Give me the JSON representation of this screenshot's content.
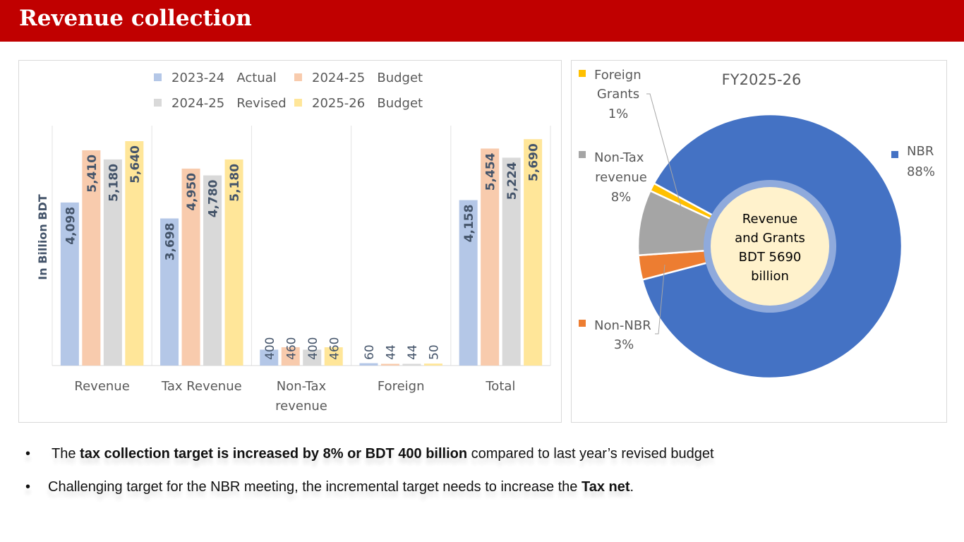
{
  "header": {
    "title": "Revenue collection"
  },
  "chart_data": [
    {
      "type": "bar",
      "title": "",
      "ylabel": "In Billion BDT",
      "xlabel": "",
      "categories": [
        "Revenue",
        "Tax Revenue",
        "Non-Tax revenue",
        "Foreign",
        "Total"
      ],
      "category_lines": [
        [
          "Revenue"
        ],
        [
          "Tax Revenue"
        ],
        [
          "Non-Tax",
          "revenue"
        ],
        [
          "Foreign"
        ],
        [
          "Total"
        ]
      ],
      "series": [
        {
          "name": "2023-24   Actual",
          "color": "#b4c7e7",
          "values": [
            4098,
            3698,
            400,
            60,
            4158
          ],
          "labels": [
            "4,098",
            "3,698",
            "400",
            "60",
            "4,158"
          ]
        },
        {
          "name": "2024-25   Budget",
          "color": "#f8cbad",
          "values": [
            5410,
            4950,
            460,
            44,
            5454
          ],
          "labels": [
            "5,410",
            "4,950",
            "460",
            "44",
            "5,454"
          ]
        },
        {
          "name": "2024-25   Revised",
          "color": "#d9d9d9",
          "values": [
            5180,
            4780,
            400,
            44,
            5224
          ],
          "labels": [
            "5,180",
            "4,780",
            "400",
            "44",
            "5,224"
          ]
        },
        {
          "name": "2025-26   Budget",
          "color": "#ffe699",
          "values": [
            5640,
            5180,
            460,
            50,
            5690
          ],
          "labels": [
            "5,640",
            "5,180",
            "460",
            "50",
            "5,690"
          ]
        }
      ],
      "ylim": [
        0,
        6000
      ],
      "grid": "vertical category separators",
      "legend": "top",
      "label_color": "#44546a"
    },
    {
      "type": "pie",
      "subtype": "doughnut",
      "title": "FY2025-26",
      "center_label": [
        "Revenue",
        "and Grants",
        "BDT 5690",
        "billion"
      ],
      "slices": [
        {
          "name": "NBR",
          "percent": 88,
          "label": [
            "NBR",
            "88%"
          ],
          "color": "#4472c4"
        },
        {
          "name": "Non-NBR",
          "percent": 3,
          "label": [
            "Non-NBR",
            "3%"
          ],
          "color": "#ed7d31"
        },
        {
          "name": "Non-Tax revenue",
          "percent": 8,
          "label": [
            "Non-Tax",
            "revenue",
            "8%"
          ],
          "color": "#a5a5a5"
        },
        {
          "name": "Foreign Grants",
          "percent": 1,
          "label": [
            "Foreign",
            "Grants",
            "1%"
          ],
          "color": "#ffc000"
        }
      ]
    }
  ],
  "bullets": [
    {
      "parts": [
        {
          "t": "The ",
          "b": false
        },
        {
          "t": "tax collection target is increased by 8% or BDT 400 billion",
          "b": true
        },
        {
          "t": " compared to last year’s revised budget",
          "b": false
        }
      ]
    },
    {
      "parts": [
        {
          "t": "Challenging target for the NBR meeting, the incremental target needs to increase the ",
          "b": false
        },
        {
          "t": "Tax net",
          "b": true
        },
        {
          "t": ".",
          "b": false
        }
      ]
    }
  ],
  "bullet_glyph": "•"
}
